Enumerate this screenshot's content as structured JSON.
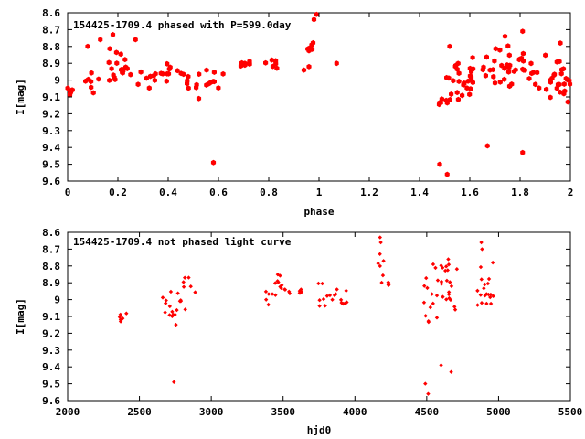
{
  "charts": [
    {
      "type": "scatter",
      "title": "154425-1709.4 phased with P=599.0day",
      "xlabel": "phase",
      "ylabel": "I[mag]",
      "xlim": [
        0,
        2
      ],
      "ylim": [
        8.6,
        9.6
      ],
      "y_inverted": true,
      "x_ticks": [
        0,
        0.2,
        0.4,
        0.6,
        0.8,
        1,
        1.2,
        1.4,
        1.6,
        1.8,
        2
      ],
      "x_tick_labels": [
        "0",
        "0.2",
        "0.4",
        "0.6",
        "0.8",
        "1",
        "1.2",
        "1.4",
        "1.6",
        "1.8",
        "2"
      ],
      "y_ticks": [
        8.6,
        8.7,
        8.8,
        8.9,
        9,
        9.1,
        9.2,
        9.3,
        9.4,
        9.5,
        9.6
      ],
      "y_tick_labels": [
        "8.6",
        "8.7",
        "8.8",
        "8.9",
        "9",
        "9.1",
        "9.2",
        "9.3",
        "9.4",
        "9.5",
        "9.6"
      ],
      "marker": "filled-hexagon",
      "color": "#ff0000",
      "grid": false,
      "clusters": [
        {
          "x": [
            0,
            0.02
          ],
          "y": [
            9.02,
            9.12
          ]
        },
        {
          "x": [
            0.07,
            0.15
          ],
          "y": [
            8.92,
            9.08
          ]
        },
        {
          "x": [
            0.15,
            0.25
          ],
          "y": [
            8.73,
            9.05
          ]
        },
        {
          "x": [
            0.25,
            0.36
          ],
          "y": [
            8.92,
            9.06
          ]
        },
        {
          "x": [
            0.36,
            0.46
          ],
          "y": [
            8.85,
            9.02
          ]
        },
        {
          "x": [
            0.46,
            0.62
          ],
          "y": [
            8.93,
            9.13
          ]
        },
        {
          "x": [
            0.68,
            0.74
          ],
          "y": [
            8.87,
            8.93
          ]
        },
        {
          "x": [
            0.78,
            0.85
          ],
          "y": [
            8.83,
            8.95
          ]
        },
        {
          "x": [
            0.95,
            0.98
          ],
          "y": [
            8.67,
            8.95
          ]
        },
        {
          "x": [
            1.47,
            1.52
          ],
          "y": [
            9.1,
            9.16
          ]
        },
        {
          "x": [
            1.5,
            1.62
          ],
          "y": [
            8.82,
            9.18
          ]
        },
        {
          "x": [
            1.6,
            1.82
          ],
          "y": [
            8.78,
            9.1
          ]
        },
        {
          "x": [
            1.82,
            2.0
          ],
          "y": [
            8.83,
            9.14
          ]
        }
      ],
      "points": [
        [
          0.98,
          8.64
        ],
        [
          0.99,
          8.61
        ],
        [
          1.07,
          8.9
        ],
        [
          0.58,
          9.49
        ],
        [
          1.48,
          9.5
        ],
        [
          1.51,
          9.56
        ],
        [
          1.67,
          9.39
        ],
        [
          1.81,
          9.43
        ],
        [
          0.08,
          8.8
        ],
        [
          0.13,
          8.76
        ],
        [
          0.18,
          8.73
        ],
        [
          0.27,
          8.76
        ],
        [
          0.94,
          8.94
        ],
        [
          0.96,
          8.92
        ],
        [
          1.52,
          8.8
        ],
        [
          1.74,
          8.74
        ],
        [
          1.81,
          8.71
        ],
        [
          1.96,
          8.78
        ],
        [
          1.99,
          9.13
        ]
      ]
    },
    {
      "type": "scatter",
      "title": "154425-1709.4 not phased light curve",
      "xlabel": "hjd0",
      "ylabel": "I[mag]",
      "xlim": [
        2000,
        5500
      ],
      "ylim": [
        8.6,
        9.6
      ],
      "y_inverted": true,
      "x_ticks": [
        2000,
        2500,
        3000,
        3500,
        4000,
        4500,
        5000,
        5500
      ],
      "x_tick_labels": [
        "2000",
        "2500",
        "3000",
        "3500",
        "4000",
        "4500",
        "5000",
        "5500"
      ],
      "y_ticks": [
        8.6,
        8.7,
        8.8,
        8.9,
        9,
        9.1,
        9.2,
        9.3,
        9.4,
        9.5,
        9.6
      ],
      "y_tick_labels": [
        "8.6",
        "8.7",
        "8.8",
        "8.9",
        "9",
        "9.1",
        "9.2",
        "9.3",
        "9.4",
        "9.5",
        "9.6"
      ],
      "marker": "small-filled-diamond",
      "color": "#ff0000",
      "grid": false,
      "clusters": [
        {
          "x": [
            2340,
            2410
          ],
          "y": [
            9.03,
            9.17
          ]
        },
        {
          "x": [
            2650,
            2720
          ],
          "y": [
            8.92,
            9.08
          ]
        },
        {
          "x": [
            2700,
            2760
          ],
          "y": [
            9.02,
            9.18
          ]
        },
        {
          "x": [
            2760,
            2830
          ],
          "y": [
            8.93,
            9.08
          ]
        },
        {
          "x": [
            2800,
            2890
          ],
          "y": [
            8.83,
            8.98
          ]
        },
        {
          "x": [
            3380,
            3450
          ],
          "y": [
            8.88,
            9.05
          ]
        },
        {
          "x": [
            3420,
            3480
          ],
          "y": [
            8.82,
            8.95
          ]
        },
        {
          "x": [
            3470,
            3560
          ],
          "y": [
            8.9,
            9.03
          ]
        },
        {
          "x": [
            3600,
            3630
          ],
          "y": [
            8.93,
            8.98
          ]
        },
        {
          "x": [
            3740,
            3800
          ],
          "y": [
            8.87,
            9.1
          ]
        },
        {
          "x": [
            3800,
            3880
          ],
          "y": [
            8.88,
            9.05
          ]
        },
        {
          "x": [
            3880,
            3950
          ],
          "y": [
            8.93,
            9.1
          ]
        },
        {
          "x": [
            4150,
            4200
          ],
          "y": [
            8.65,
            9.01
          ]
        },
        {
          "x": [
            4230,
            4250
          ],
          "y": [
            8.88,
            8.92
          ]
        },
        {
          "x": [
            4480,
            4560
          ],
          "y": [
            8.82,
            9.2
          ]
        },
        {
          "x": [
            4560,
            4700
          ],
          "y": [
            8.78,
            9.15
          ]
        },
        {
          "x": [
            4600,
            4720
          ],
          "y": [
            8.76,
            8.95
          ]
        },
        {
          "x": [
            4850,
            4920
          ],
          "y": [
            8.75,
            9.1
          ]
        },
        {
          "x": [
            4900,
            5000
          ],
          "y": [
            8.78,
            9.08
          ]
        }
      ],
      "points": [
        [
          4175,
          8.63
        ],
        [
          4180,
          8.66
        ],
        [
          4880,
          8.66
        ],
        [
          4885,
          8.7
        ],
        [
          2740,
          9.49
        ],
        [
          4490,
          9.5
        ],
        [
          4510,
          9.56
        ],
        [
          4600,
          9.39
        ],
        [
          4670,
          9.43
        ],
        [
          4545,
          8.79
        ],
        [
          4650,
          8.76
        ],
        [
          4960,
          8.78
        ]
      ]
    }
  ]
}
